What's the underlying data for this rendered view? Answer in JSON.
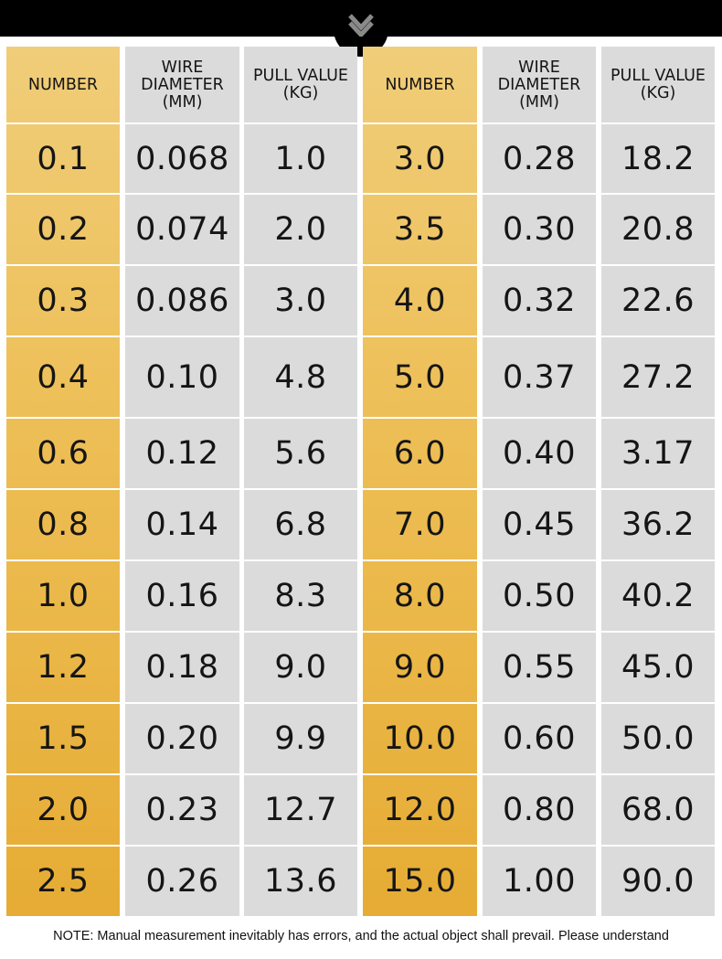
{
  "table": {
    "headers": [
      [
        "NUMBER"
      ],
      [
        "WIRE",
        "DIAMETER",
        "(MM)"
      ],
      [
        "PULL VALUE",
        "(KG)"
      ],
      [
        "NUMBER"
      ],
      [
        "WIRE",
        "DIAMETER",
        "(MM)"
      ],
      [
        "PULL VALUE",
        "(KG)"
      ]
    ],
    "rows": [
      [
        "0.1",
        "0.068",
        "1.0",
        "3.0",
        "0.28",
        "18.2"
      ],
      [
        "0.2",
        "0.074",
        "2.0",
        "3.5",
        "0.30",
        "20.8"
      ],
      [
        "0.3",
        "0.086",
        "3.0",
        "4.0",
        "0.32",
        "22.6"
      ],
      [
        "0.4",
        "0.10",
        "4.8",
        "5.0",
        "0.37",
        "27.2"
      ],
      [
        "0.6",
        "0.12",
        "5.6",
        "6.0",
        "0.40",
        "3.17"
      ],
      [
        "0.8",
        "0.14",
        "6.8",
        "7.0",
        "0.45",
        "36.2"
      ],
      [
        "1.0",
        "0.16",
        "8.3",
        "8.0",
        "0.50",
        "40.2"
      ],
      [
        "1.2",
        "0.18",
        "9.0",
        "9.0",
        "0.55",
        "45.0"
      ],
      [
        "1.5",
        "0.20",
        "9.9",
        "10.0",
        "0.60",
        "50.0"
      ],
      [
        "2.0",
        "0.23",
        "12.7",
        "12.0",
        "0.80",
        "68.0"
      ],
      [
        "2.5",
        "0.26",
        "13.6",
        "15.0",
        "1.00",
        "90.0"
      ]
    ]
  },
  "note": "NOTE: Manual measurement inevitably has errors, and the actual object shall prevail. Please understand",
  "colors": {
    "gold_top": "#f0cd79",
    "gold_bottom": "#e6ac34",
    "gray": "#dbdbdb",
    "banner": "#000000"
  },
  "icons": {
    "banner": "chevron-down-icon"
  }
}
